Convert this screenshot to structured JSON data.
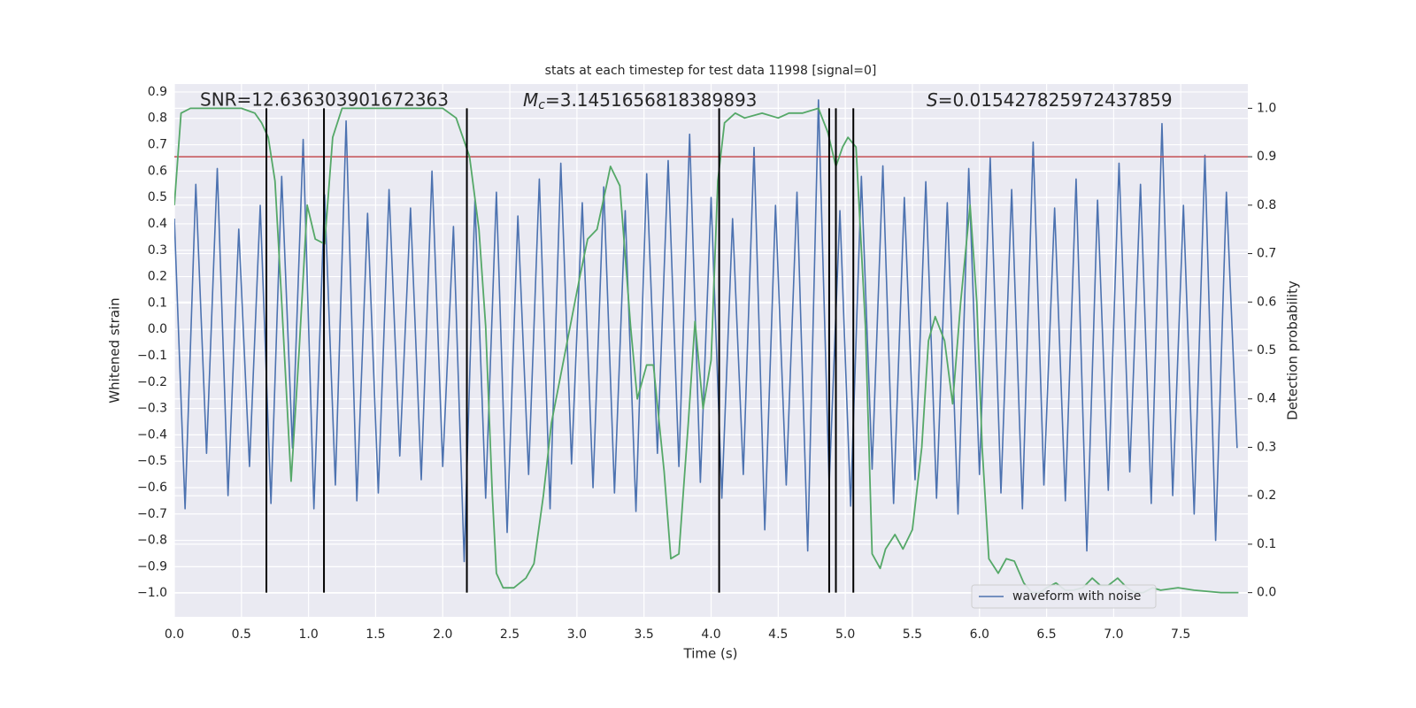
{
  "chart_data": {
    "type": "line",
    "title": "stats at each timestep for test data 11998 [signal=0]",
    "x_label": "Time (s)",
    "y_label": "Whitened strain",
    "y2_label": "Detection probability",
    "annotations": [
      {
        "text": "SNR=12.636303901672363"
      },
      {
        "symbol": "M",
        "subscript": "c",
        "text": "=3.1451656818389893"
      },
      {
        "symbol": "S",
        "text": "=0.015427825972437859"
      }
    ],
    "xlim": [
      0,
      8
    ],
    "ylim": [
      -1.09,
      0.93
    ],
    "y2lim": [
      -0.05,
      1.05
    ],
    "xticks": [
      {
        "value": 0,
        "label": "0.0"
      },
      {
        "value": 0.5,
        "label": "0.5"
      },
      {
        "value": 1,
        "label": "1.0"
      },
      {
        "value": 1.5,
        "label": "1.5"
      },
      {
        "value": 2,
        "label": "2.0"
      },
      {
        "value": 2.5,
        "label": "2.5"
      },
      {
        "value": 3,
        "label": "3.0"
      },
      {
        "value": 3.5,
        "label": "3.5"
      },
      {
        "value": 4,
        "label": "4.0"
      },
      {
        "value": 4.5,
        "label": "4.5"
      },
      {
        "value": 5,
        "label": "5.0"
      },
      {
        "value": 5.5,
        "label": "5.5"
      },
      {
        "value": 6,
        "label": "6.0"
      },
      {
        "value": 6.5,
        "label": "6.5"
      },
      {
        "value": 7,
        "label": "7.0"
      },
      {
        "value": 7.5,
        "label": "7.5"
      }
    ],
    "yticks": [
      {
        "value": -1,
        "label": "−1.0"
      },
      {
        "value": -0.9,
        "label": "−0.9"
      },
      {
        "value": -0.8,
        "label": "−0.8"
      },
      {
        "value": -0.7,
        "label": "−0.7"
      },
      {
        "value": -0.6,
        "label": "−0.6"
      },
      {
        "value": -0.5,
        "label": "−0.5"
      },
      {
        "value": -0.4,
        "label": "−0.4"
      },
      {
        "value": -0.3,
        "label": "−0.3"
      },
      {
        "value": -0.2,
        "label": "−0.2"
      },
      {
        "value": -0.1,
        "label": "−0.1"
      },
      {
        "value": 0,
        "label": "0.0"
      },
      {
        "value": 0.1,
        "label": "0.1"
      },
      {
        "value": 0.2,
        "label": "0.2"
      },
      {
        "value": 0.3,
        "label": "0.3"
      },
      {
        "value": 0.4,
        "label": "0.4"
      },
      {
        "value": 0.5,
        "label": "0.5"
      },
      {
        "value": 0.6,
        "label": "0.6"
      },
      {
        "value": 0.7,
        "label": "0.7"
      },
      {
        "value": 0.8,
        "label": "0.8"
      },
      {
        "value": 0.9,
        "label": "0.9"
      }
    ],
    "y2ticks": [
      {
        "value": 0,
        "label": "0.0"
      },
      {
        "value": 0.1,
        "label": "0.1"
      },
      {
        "value": 0.2,
        "label": "0.2"
      },
      {
        "value": 0.3,
        "label": "0.3"
      },
      {
        "value": 0.4,
        "label": "0.4"
      },
      {
        "value": 0.5,
        "label": "0.5"
      },
      {
        "value": 0.6,
        "label": "0.6"
      },
      {
        "value": 0.7,
        "label": "0.7"
      },
      {
        "value": 0.8,
        "label": "0.8"
      },
      {
        "value": 0.9,
        "label": "0.9"
      },
      {
        "value": 1,
        "label": "1.0"
      }
    ],
    "grid": true,
    "legend": "lower right",
    "series": [
      {
        "name": "waveform with noise",
        "color": "#4c72b0",
        "x": [
          0,
          0.08,
          0.16,
          0.24,
          0.32,
          0.4,
          0.48,
          0.56,
          0.64,
          0.72,
          0.8,
          0.88,
          0.96,
          1.04,
          1.12,
          1.2,
          1.28,
          1.36,
          1.44,
          1.52,
          1.6,
          1.68,
          1.76,
          1.84,
          1.92,
          2,
          2.08,
          2.16,
          2.24,
          2.32,
          2.4,
          2.48,
          2.56,
          2.64,
          2.72,
          2.8,
          2.88,
          2.96,
          3.04,
          3.12,
          3.2,
          3.28,
          3.36,
          3.44,
          3.52,
          3.6,
          3.68,
          3.76,
          3.84,
          3.92,
          4,
          4.08,
          4.16,
          4.24,
          4.32,
          4.4,
          4.48,
          4.56,
          4.64,
          4.72,
          4.8,
          4.88,
          4.96,
          5.04,
          5.12,
          5.2,
          5.28,
          5.36,
          5.44,
          5.52,
          5.6,
          5.68,
          5.76,
          5.84,
          5.92,
          6,
          6.08,
          6.16,
          6.24,
          6.32,
          6.4,
          6.48,
          6.56,
          6.64,
          6.72,
          6.8,
          6.88,
          6.96,
          7.04,
          7.12,
          7.2,
          7.28,
          7.36,
          7.44,
          7.52,
          7.6,
          7.68,
          7.76,
          7.84,
          7.92
        ],
        "values": [
          0.42,
          -0.68,
          0.55,
          -0.47,
          0.61,
          -0.63,
          0.38,
          -0.52,
          0.47,
          -0.66,
          0.58,
          -0.45,
          0.72,
          -0.68,
          0.51,
          -0.59,
          0.79,
          -0.65,
          0.44,
          -0.62,
          0.53,
          -0.48,
          0.46,
          -0.57,
          0.6,
          -0.52,
          0.39,
          -0.88,
          0.49,
          -0.64,
          0.52,
          -0.77,
          0.43,
          -0.55,
          0.57,
          -0.68,
          0.63,
          -0.51,
          0.48,
          -0.6,
          0.54,
          -0.62,
          0.45,
          -0.69,
          0.59,
          -0.47,
          0.64,
          -0.52,
          0.74,
          -0.58,
          0.5,
          -0.64,
          0.42,
          -0.55,
          0.69,
          -0.76,
          0.47,
          -0.59,
          0.52,
          -0.84,
          0.87,
          -0.59,
          0.45,
          -0.67,
          0.58,
          -0.53,
          0.62,
          -0.66,
          0.5,
          -0.57,
          0.56,
          -0.64,
          0.48,
          -0.7,
          0.61,
          -0.55,
          0.65,
          -0.62,
          0.53,
          -0.68,
          0.71,
          -0.59,
          0.46,
          -0.65,
          0.57,
          -0.84,
          0.49,
          -0.61,
          0.63,
          -0.54,
          0.55,
          -0.66,
          0.78,
          -0.63,
          0.47,
          -0.7,
          0.66,
          -0.8,
          0.52,
          -0.45
        ]
      },
      {
        "color": "#55a868",
        "axis": "y2",
        "x": [
          0,
          0.05,
          0.12,
          0.3,
          0.5,
          0.6,
          0.65,
          0.7,
          0.75,
          0.8,
          0.87,
          0.93,
          0.99,
          1.05,
          1.12,
          1.18,
          1.25,
          1.5,
          2,
          2.1,
          2.15,
          2.2,
          2.27,
          2.32,
          2.37,
          2.4,
          2.45,
          2.53,
          2.62,
          2.68,
          2.75,
          2.81,
          2.88,
          2.95,
          3.02,
          3.08,
          3.15,
          3.22,
          3.25,
          3.32,
          3.4,
          3.45,
          3.52,
          3.57,
          3.65,
          3.7,
          3.76,
          3.83,
          3.88,
          3.94,
          4,
          4.05,
          4.1,
          4.18,
          4.25,
          4.38,
          4.5,
          4.58,
          4.68,
          4.8,
          4.87,
          4.93,
          4.98,
          5.02,
          5.08,
          5.15,
          5.2,
          5.26,
          5.3,
          5.37,
          5.43,
          5.5,
          5.57,
          5.62,
          5.67,
          5.74,
          5.8,
          5.86,
          5.93,
          5.98,
          6.02,
          6.07,
          6.14,
          6.2,
          6.26,
          6.33,
          6.39,
          6.45,
          6.5,
          6.57,
          6.64,
          6.7,
          6.77,
          6.84,
          6.9,
          6.96,
          7.03,
          7.1,
          7.16,
          7.22,
          7.29,
          7.35,
          7.48,
          7.6,
          7.8,
          7.93
        ],
        "values": [
          0.8,
          0.99,
          1,
          1,
          1,
          0.99,
          0.97,
          0.94,
          0.85,
          0.6,
          0.23,
          0.5,
          0.8,
          0.73,
          0.72,
          0.94,
          1,
          1,
          1,
          0.98,
          0.94,
          0.9,
          0.75,
          0.55,
          0.2,
          0.04,
          0.01,
          0.01,
          0.03,
          0.06,
          0.2,
          0.35,
          0.45,
          0.55,
          0.65,
          0.73,
          0.75,
          0.84,
          0.88,
          0.84,
          0.55,
          0.4,
          0.47,
          0.47,
          0.25,
          0.07,
          0.08,
          0.35,
          0.56,
          0.38,
          0.48,
          0.85,
          0.97,
          0.99,
          0.98,
          0.99,
          0.98,
          0.99,
          0.99,
          1,
          0.95,
          0.88,
          0.92,
          0.94,
          0.92,
          0.55,
          0.08,
          0.05,
          0.09,
          0.12,
          0.09,
          0.13,
          0.3,
          0.52,
          0.57,
          0.52,
          0.39,
          0.6,
          0.8,
          0.6,
          0.3,
          0.07,
          0.04,
          0.07,
          0.065,
          0.02,
          0,
          0,
          0.01,
          0.02,
          0.005,
          0.005,
          0.01,
          0.03,
          0.015,
          0.015,
          0.03,
          0.01,
          0,
          0,
          0.01,
          0.005,
          0.01,
          0.005,
          0,
          0
        ]
      }
    ],
    "hlines": [
      {
        "axis": "y2",
        "value": 0.9,
        "color": "#c44e52"
      }
    ],
    "vlines": {
      "axis": "y2",
      "ymin": 0,
      "ymax": 1,
      "color": "#000000",
      "values": [
        0.686,
        1.115,
        2.18,
        4.06,
        4.88,
        4.93,
        5.06
      ]
    }
  }
}
